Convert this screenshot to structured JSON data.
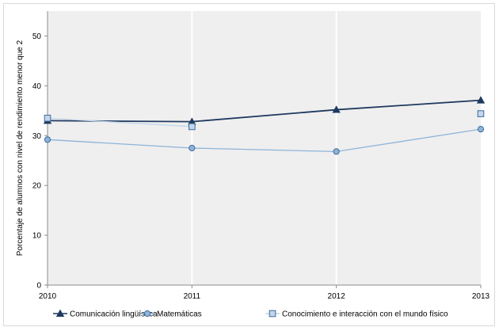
{
  "chart_data": {
    "type": "line",
    "title": "",
    "xlabel": "",
    "ylabel": "Porcentaje de alumnos con nivel de rendimiento menor que 2",
    "x": [
      "2010",
      "2011",
      "2012",
      "2013"
    ],
    "ylim": [
      0,
      55
    ],
    "yticks": [
      0,
      10,
      20,
      30,
      40,
      50
    ],
    "grid": "vertical",
    "legend_position": "bottom",
    "plot_background": "#efefef",
    "series": [
      {
        "name": "Comunicación lingüística",
        "values": [
          33.0,
          32.8,
          35.2,
          37.1
        ],
        "color": "#1f3a5f",
        "marker": "triangle"
      },
      {
        "name": "Matemáticas",
        "values": [
          29.2,
          27.5,
          26.8,
          31.3
        ],
        "color": "#8eb4d9",
        "marker": "circle"
      },
      {
        "name": "Conocimiento e interacción con el mundo físico",
        "values": [
          33.5,
          31.8,
          null,
          34.4
        ],
        "color": "#c3d6ea",
        "marker": "square"
      }
    ]
  }
}
